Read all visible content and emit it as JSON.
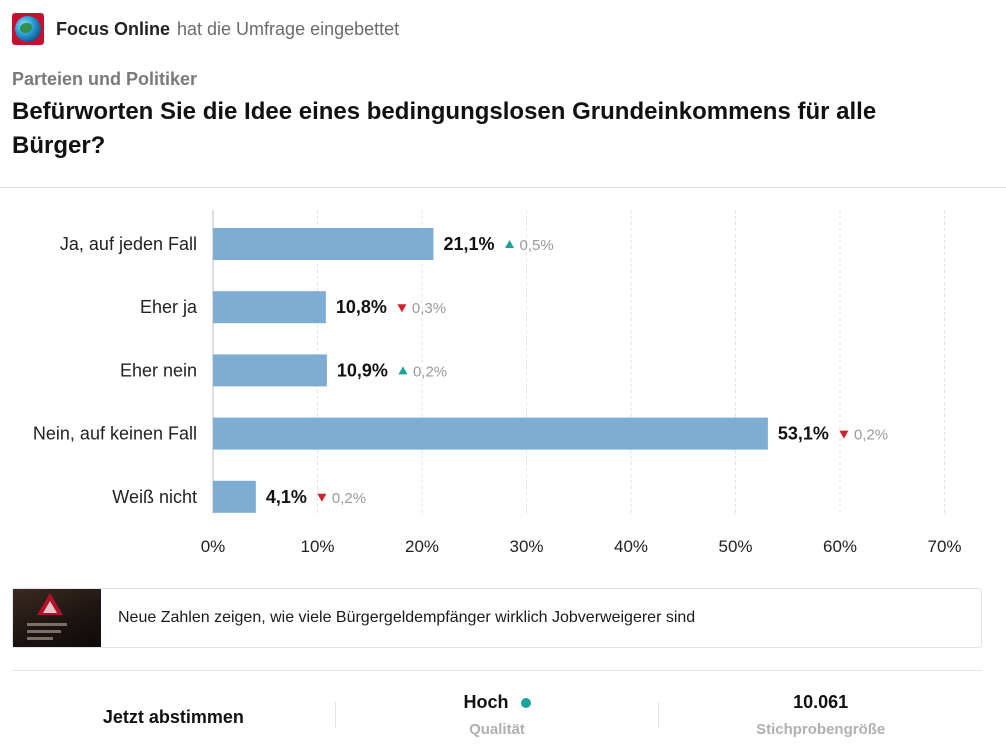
{
  "header": {
    "source": "Focus Online",
    "embed_text": "hat die Umfrage eingebettet"
  },
  "category": "Parteien und Politiker",
  "question": "Befürworten Sie die Idee eines bedingungslosen Grundeinkommens für alle Bürger?",
  "chart_data": {
    "type": "bar",
    "orientation": "horizontal",
    "categories": [
      "Ja, auf jeden Fall",
      "Eher ja",
      "Eher nein",
      "Nein, auf keinen Fall",
      "Weiß nicht"
    ],
    "values": [
      21.1,
      10.8,
      10.9,
      53.1,
      4.1
    ],
    "value_labels": [
      "21,1%",
      "10,8%",
      "10,9%",
      "53,1%",
      "4,1%"
    ],
    "changes": [
      {
        "direction": "up",
        "label": "0,5%"
      },
      {
        "direction": "down",
        "label": "0,3%"
      },
      {
        "direction": "up",
        "label": "0,2%"
      },
      {
        "direction": "down",
        "label": "0,2%"
      },
      {
        "direction": "down",
        "label": "0,2%"
      }
    ],
    "xlim": [
      0,
      70
    ],
    "xticks": [
      0,
      10,
      20,
      30,
      40,
      50,
      60,
      70
    ],
    "xtick_labels": [
      "0%",
      "10%",
      "20%",
      "30%",
      "40%",
      "50%",
      "60%",
      "70%"
    ],
    "grid": "vertical-dashed",
    "bar_color": "#7eadd4",
    "up_color": "#1aa39a",
    "down_color": "#d0202a"
  },
  "article": {
    "title": "Neue Zahlen zeigen, wie viele Bürgergeldempfänger wirklich Jobverweigerer sind"
  },
  "footer": {
    "vote_label": "Jetzt abstimmen",
    "quality_value": "Hoch",
    "quality_label": "Qualität",
    "sample_value": "10.061",
    "sample_label": "Stichprobengröße",
    "quality_dot_color": "#1aa39a"
  }
}
